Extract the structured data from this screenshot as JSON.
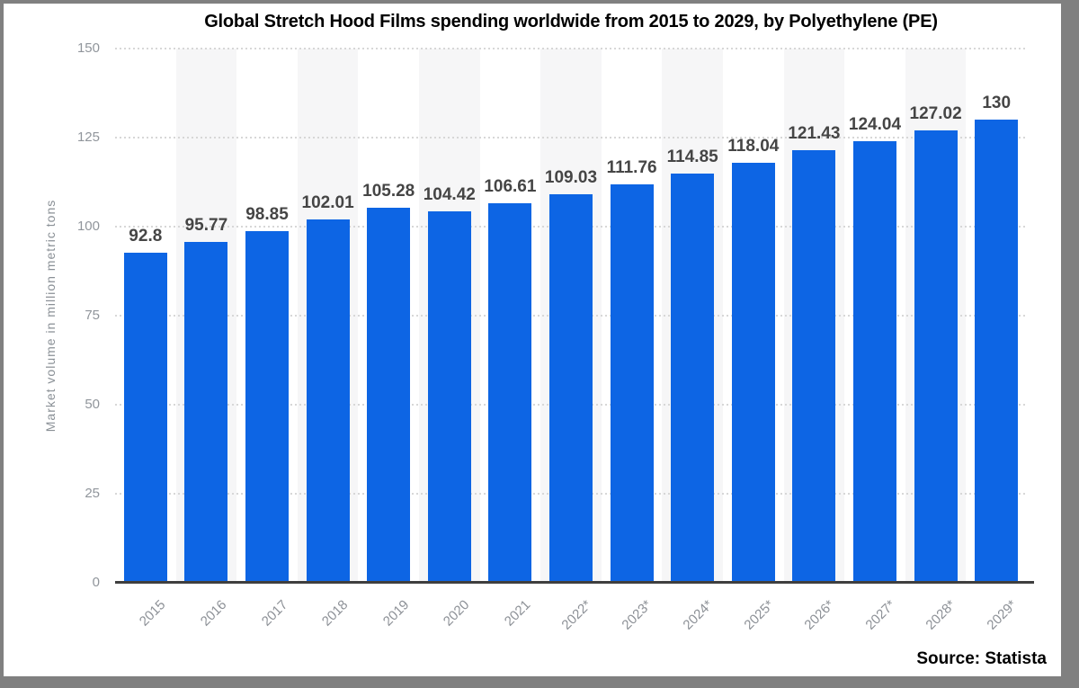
{
  "window": {
    "border_color": "#808080",
    "background": "#ffffff"
  },
  "header": {
    "title": "Global Stretch Hood Films spending worldwide from 2015 to 2029, by Polyethylene (PE)"
  },
  "footer": {
    "source_label": "Source: Statista"
  },
  "chart_data": {
    "type": "bar",
    "title": "Global Stretch Hood Films spending worldwide from 2015 to 2029, by Polyethylene (PE)",
    "categories": [
      "2015",
      "2016",
      "2017",
      "2018",
      "2019",
      "2020",
      "2021",
      "2022*",
      "2023*",
      "2024*",
      "2025*",
      "2026*",
      "2027*",
      "2028*",
      "2029*"
    ],
    "values": [
      92.8,
      95.77,
      98.85,
      102.01,
      105.28,
      104.42,
      106.61,
      109.03,
      111.76,
      114.85,
      118.04,
      121.43,
      124.04,
      127.02,
      130
    ],
    "value_labels": [
      "92.8",
      "95.77",
      "98.85",
      "102.01",
      "105.28",
      "104.42",
      "106.61",
      "109.03",
      "111.76",
      "114.85",
      "118.04",
      "121.43",
      "124.04",
      "127.02",
      "130"
    ],
    "xlabel": "",
    "ylabel": "Market volume in million metric tons",
    "ylim": [
      0,
      150
    ],
    "yticks": [
      0,
      25,
      50,
      75,
      100,
      125,
      150
    ],
    "grid": "horizontal dotted gridlines at each y tick, solid dark baseline at 0",
    "legend": "none",
    "background_stripes": "alternating vertical column bands, odd columns shaded",
    "bar_color": "#0d65e4",
    "stripe_color": "#f6f6f7",
    "gridline_color": "#d7d7d7",
    "axis_color": "#3f3f3f",
    "value_label_color": "#454545",
    "tick_label_color": "#90959b"
  }
}
